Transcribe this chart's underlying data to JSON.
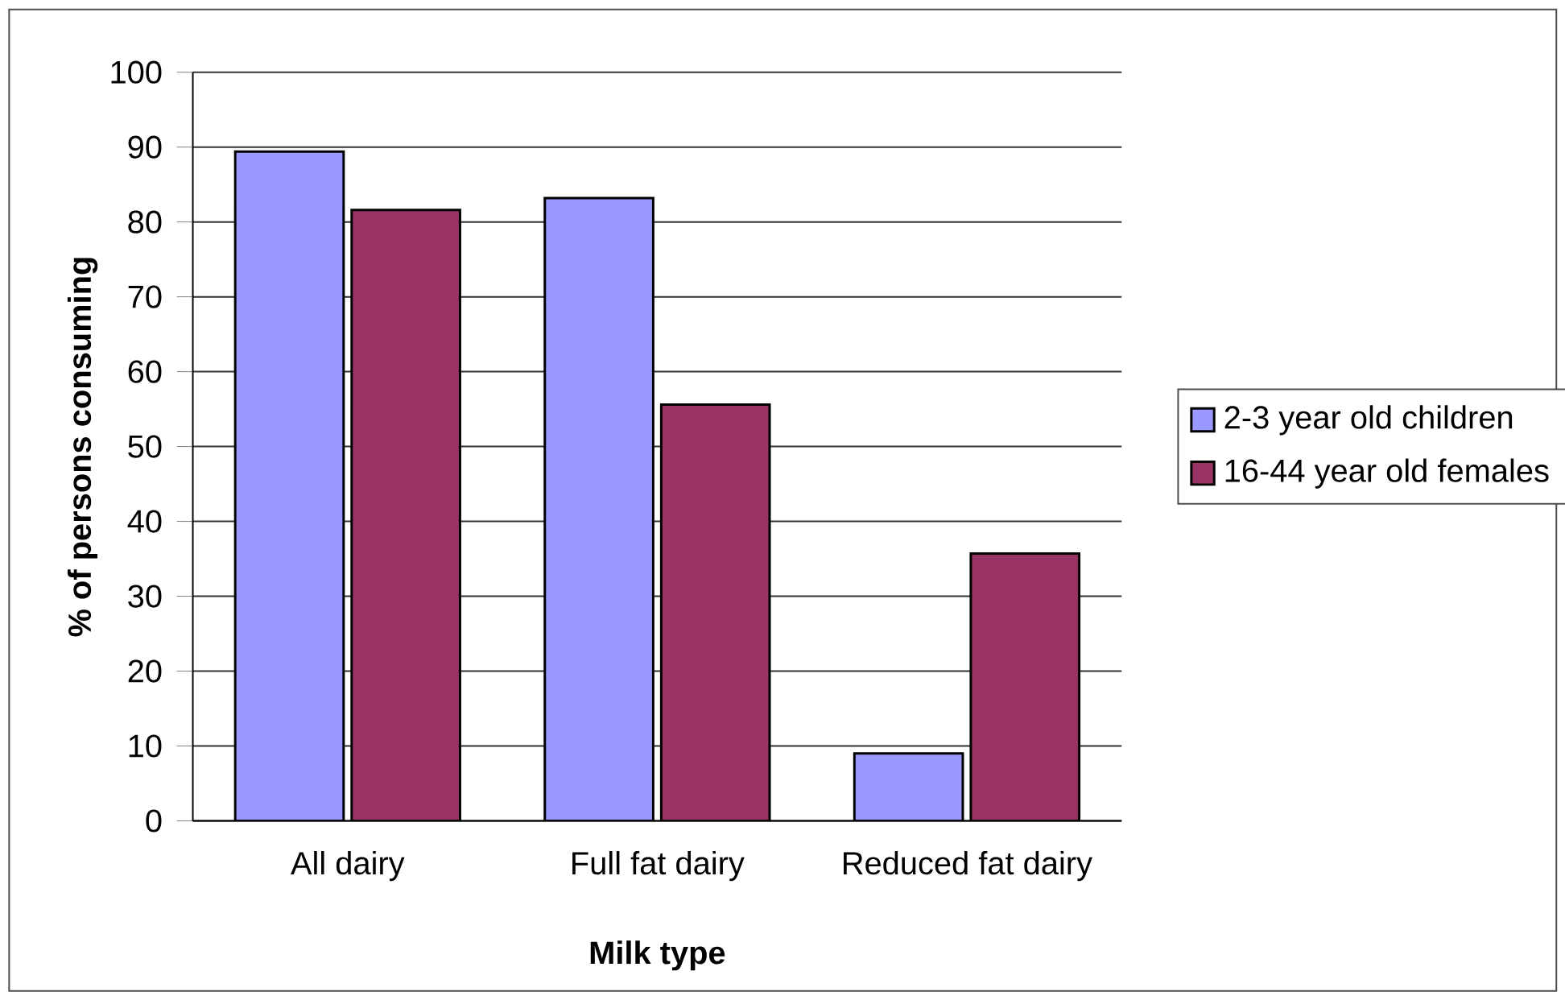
{
  "chart_data": {
    "type": "bar",
    "xlabel": "Milk type",
    "ylabel": "% of persons consuming",
    "categories": [
      "All dairy",
      "Full fat dairy",
      "Reduced fat dairy"
    ],
    "series": [
      {
        "name": "2-3 year old children",
        "color": "#9999ff",
        "values": [
          89.4,
          83.2,
          9
        ]
      },
      {
        "name": "16-44 year old females",
        "color": "#993366",
        "values": [
          81.6,
          55.6,
          35.7
        ]
      }
    ],
    "ylim": [
      0,
      100
    ],
    "yticks": [
      0,
      10,
      20,
      30,
      40,
      50,
      60,
      70,
      80,
      90,
      100
    ],
    "grid": "y",
    "legend": "right"
  }
}
